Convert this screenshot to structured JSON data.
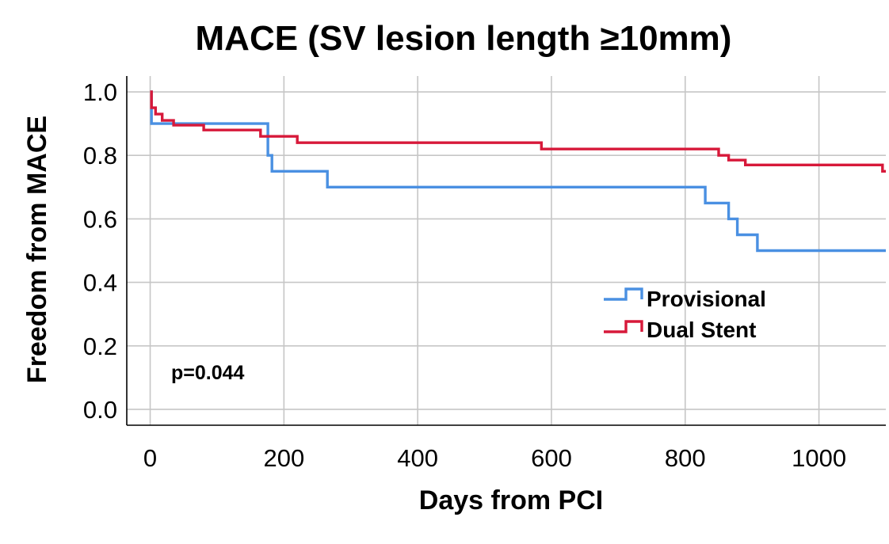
{
  "chart_data": {
    "type": "line",
    "subtype": "kaplan-meier step",
    "title": "MACE (SV lesion length ≥10mm)",
    "xlabel": "Days from PCI",
    "ylabel": "Freedom from MACE",
    "xlim": [
      -35,
      1100
    ],
    "ylim": [
      -0.05,
      1.05
    ],
    "xticks": [
      0,
      200,
      400,
      600,
      800,
      1000
    ],
    "xtick_labels": [
      "0",
      "200",
      "400",
      "600",
      "800",
      "1000"
    ],
    "yticks": [
      0.0,
      0.2,
      0.4,
      0.6,
      0.8,
      1.0
    ],
    "ytick_labels": [
      "0.0",
      "0.2",
      "0.4",
      "0.6",
      "0.8",
      "1.0"
    ],
    "grid": true,
    "legend_position": "center-right",
    "annotation": "p=0.044",
    "colors": {
      "Provisional": "#4a90e2",
      "Dual Stent": "#d7193a"
    },
    "series": [
      {
        "name": "Provisional",
        "x": [
          0,
          2,
          176,
          182,
          265,
          830,
          865,
          878,
          908,
          1100
        ],
        "y": [
          1.0,
          0.9,
          0.8,
          0.75,
          0.7,
          0.65,
          0.6,
          0.55,
          0.5,
          0.5
        ]
      },
      {
        "name": "Dual Stent",
        "x": [
          0,
          2,
          8,
          18,
          35,
          80,
          165,
          220,
          585,
          850,
          865,
          890,
          1095,
          1100
        ],
        "y": [
          1.0,
          0.95,
          0.93,
          0.91,
          0.895,
          0.88,
          0.86,
          0.84,
          0.82,
          0.8,
          0.785,
          0.77,
          0.75,
          0.75
        ]
      }
    ]
  }
}
